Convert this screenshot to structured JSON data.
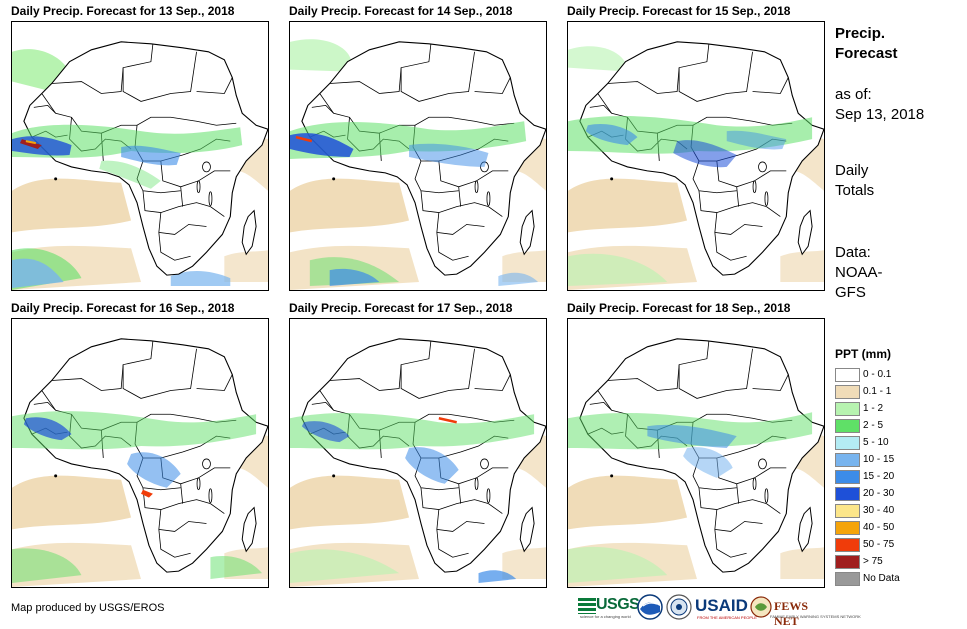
{
  "panels": [
    {
      "title": "Daily Precip. Forecast for 13  Sep., 2018"
    },
    {
      "title": "Daily Precip. Forecast for 14  Sep., 2018"
    },
    {
      "title": "Daily Precip. Forecast for 15  Sep., 2018"
    },
    {
      "title": "Daily Precip. Forecast for 16  Sep., 2018"
    },
    {
      "title": "Daily Precip. Forecast for 17  Sep., 2018"
    },
    {
      "title": "Daily Precip. Forecast for 18  Sep., 2018"
    }
  ],
  "sidebar": {
    "title_line1": "Precip.",
    "title_line2": "Forecast",
    "asof_label": "as of:",
    "asof_date": "Sep 13, 2018",
    "totals_line1": "Daily",
    "totals_line2": "Totals",
    "data_line1": "Data:",
    "data_line2": "NOAA-",
    "data_line3": "GFS"
  },
  "legend": {
    "title": "PPT (mm)",
    "items": [
      {
        "label": "0 - 0.1",
        "color": "#ffffff"
      },
      {
        "label": "0.1 - 1",
        "color": "#f0dcb8"
      },
      {
        "label": "1 - 2",
        "color": "#b7f3b0"
      },
      {
        "label": "2 - 5",
        "color": "#5fe067"
      },
      {
        "label": "5 - 10",
        "color": "#b4ecf4"
      },
      {
        "label": "10 - 15",
        "color": "#78b4ee"
      },
      {
        "label": "15 - 20",
        "color": "#3c8ce8"
      },
      {
        "label": "20 - 30",
        "color": "#1e50d8"
      },
      {
        "label": "30 - 40",
        "color": "#fce68a"
      },
      {
        "label": "40 - 50",
        "color": "#f5a40a"
      },
      {
        "label": "50 - 75",
        "color": "#f03c0a"
      },
      {
        "label": "> 75",
        "color": "#a01e1e"
      },
      {
        "label": "No Data",
        "color": "#999999"
      }
    ]
  },
  "credit": "Map produced by USGS/EROS",
  "logos": {
    "usgs": "USGS",
    "usgs_tag": "science for a changing world",
    "usaid": "USAID",
    "usaid_tag": "FROM THE AMERICAN PEOPLE",
    "fews": "FEWS NET",
    "fews_tag": "FAMINE EARLY WARNING SYSTEMS NETWORK"
  }
}
